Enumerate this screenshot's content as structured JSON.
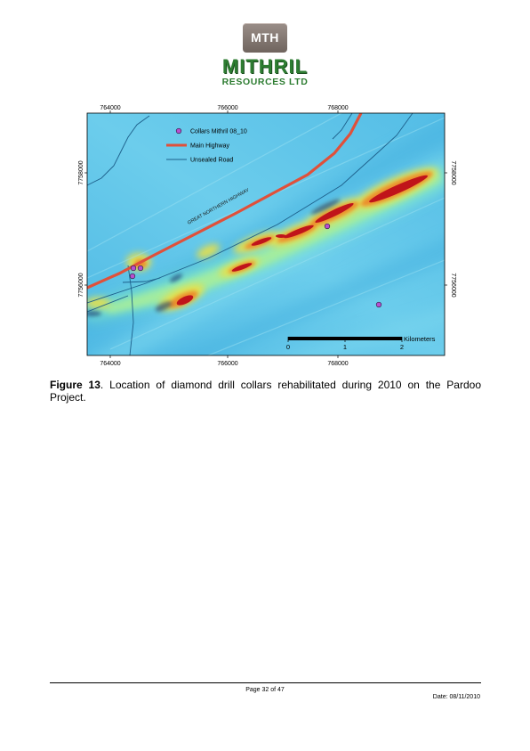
{
  "logo": {
    "badge": "MTH",
    "name": "MITHRIL",
    "subtitle": "RESOURCES LTD"
  },
  "map": {
    "x_ticks": [
      "764000",
      "766000",
      "768000"
    ],
    "y_ticks": [
      "7758000",
      "7756000"
    ],
    "legend": {
      "collars": "Collars Mithril 08_10",
      "highway": "Main Highway",
      "road": "Unsealed Road"
    },
    "road_label": "GREAT NORTHERN HIGHWAY",
    "scale": {
      "unit": "Kilometers",
      "labels": [
        "0",
        "1",
        "2"
      ]
    },
    "colors": {
      "background": "#5cc4e8",
      "highway": "#e0503a",
      "road": "#1d5f8a",
      "collar_fill": "#b84fd0",
      "anomaly_core": "#c0141a",
      "anomaly_halo": "#e8e04a"
    }
  },
  "caption": {
    "figure": "Figure 13",
    "text": ".   Location of diamond drill collars rehabilitated during 2010 on the Pardoo Project."
  },
  "footer": {
    "page": "Page 32 of 47",
    "date": "Date: 08/11/2010"
  }
}
